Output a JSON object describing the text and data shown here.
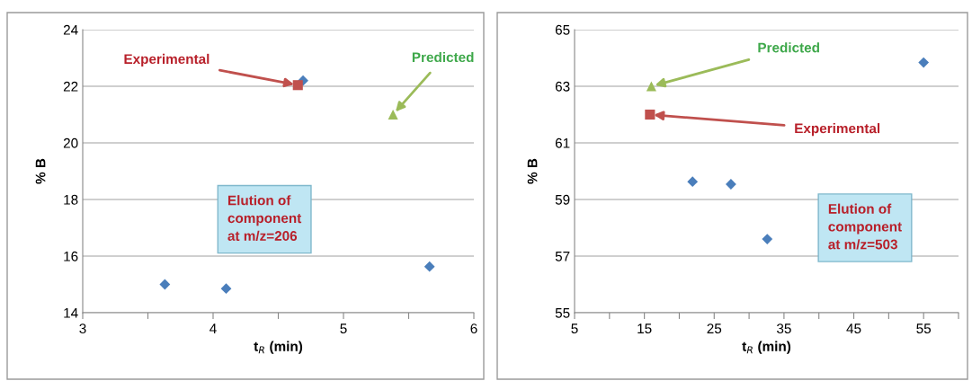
{
  "chart_data": [
    {
      "type": "scatter",
      "xlabel": "t$_{R}$ (min)",
      "ylabel": "% B",
      "grid": "y",
      "xlim": [
        3,
        6
      ],
      "xticks": [
        3,
        {
          "value": 3.5,
          "label": null
        },
        4,
        {
          "value": 4.5,
          "label": null
        },
        5,
        {
          "value": 5.5,
          "label": null
        },
        6
      ],
      "ylim": [
        14,
        24
      ],
      "yticks": [
        14,
        16,
        18,
        20,
        22,
        24
      ],
      "series": [
        {
          "color": "#4a7ebb",
          "marker": "diamond",
          "x": [
            3.63,
            4.1,
            4.69,
            5.66
          ],
          "values": [
            15.0,
            14.85,
            22.2,
            15.63
          ]
        },
        {
          "color": "#c0504d",
          "marker": "square",
          "x": [
            4.65
          ],
          "values": [
            22.04
          ]
        },
        {
          "color": "#9bbb59",
          "marker": "triangle",
          "x": [
            5.38
          ],
          "values": [
            21.0
          ]
        }
      ],
      "annotations": [
        {
          "text": "Experimental",
          "x": 4.65,
          "y": 22.04
        },
        {
          "text": "Predicted",
          "x": 5.38,
          "y": 21.0
        },
        "Elution of\ncomponent\nat m/z=206"
      ]
    },
    {
      "type": "scatter",
      "xlabel": "t$_{R}$ (min)",
      "ylabel": "% B",
      "grid": "y",
      "xlim": [
        5,
        60
      ],
      "xticks": [
        5,
        {
          "value": 10,
          "label": null
        },
        15,
        {
          "value": 20,
          "label": null
        },
        25,
        {
          "value": 30,
          "label": null
        },
        35,
        {
          "value": 40,
          "label": null
        },
        45,
        {
          "value": 50,
          "label": null
        },
        55,
        {
          "value": 60,
          "label": null
        }
      ],
      "ylim": [
        55,
        65
      ],
      "yticks": [
        55,
        57,
        59,
        61,
        63,
        65
      ],
      "series": [
        {
          "color": "#4a7ebb",
          "marker": "diamond",
          "x": [
            21.9,
            27.4,
            32.6,
            55.0
          ],
          "values": [
            59.63,
            59.54,
            57.6,
            63.84
          ]
        },
        {
          "color": "#c0504d",
          "marker": "square",
          "x": [
            15.8
          ],
          "values": [
            62.0
          ]
        },
        {
          "color": "#9bbb59",
          "marker": "triangle",
          "x": [
            16.0
          ],
          "values": [
            63.0
          ]
        }
      ],
      "annotations": [
        {
          "text": "Predicted",
          "x": 16.0,
          "y": 63.0
        },
        {
          "text": "Experimental",
          "x": 15.8,
          "y": 62.0
        },
        "Elution of\ncomponent\nat m/z=503"
      ]
    }
  ]
}
